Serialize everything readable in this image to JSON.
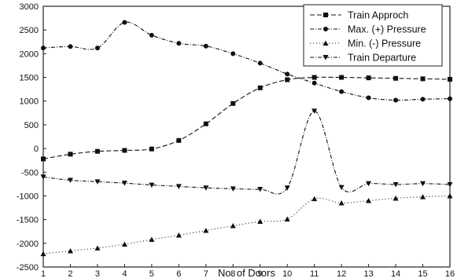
{
  "chart_data": {
    "type": "line",
    "title": "",
    "xlabel": "No. of Doors",
    "ylabel": "",
    "x": [
      1,
      2,
      3,
      4,
      5,
      6,
      7,
      8,
      9,
      10,
      11,
      12,
      13,
      14,
      15,
      16
    ],
    "xlim": [
      1,
      16
    ],
    "ylim": [
      -2500,
      3000
    ],
    "y_ticks": [
      -2500,
      -2000,
      -1500,
      -1000,
      -500,
      0,
      500,
      1000,
      1500,
      2000,
      2500,
      3000
    ],
    "legend_position": "top-right",
    "grid": false,
    "series": [
      {
        "name": "Train Approch",
        "marker": "square",
        "dash": "6,3",
        "values": [
          -220,
          -120,
          -60,
          -40,
          -10,
          170,
          520,
          950,
          1280,
          1450,
          1500,
          1500,
          1490,
          1480,
          1470,
          1460
        ]
      },
      {
        "name": "Max. (+) Pressure",
        "marker": "circle",
        "dash": "5,2,1,2",
        "values": [
          2120,
          2150,
          2120,
          2660,
          2390,
          2220,
          2160,
          2000,
          1800,
          1570,
          1380,
          1200,
          1070,
          1020,
          1040,
          1050
        ]
      },
      {
        "name": "Min. (-) Pressure",
        "marker": "triangle-up",
        "dash": "1,3",
        "values": [
          -2220,
          -2160,
          -2100,
          -2020,
          -1920,
          -1830,
          -1730,
          -1630,
          -1540,
          -1490,
          -1060,
          -1150,
          -1100,
          -1050,
          -1020,
          -1000
        ]
      },
      {
        "name": "Train Departure",
        "marker": "triangle-down",
        "dash": "5,2,1,2",
        "values": [
          -600,
          -670,
          -700,
          -730,
          -770,
          -800,
          -830,
          -850,
          -860,
          -830,
          790,
          -820,
          -740,
          -760,
          -740,
          -760
        ]
      }
    ]
  }
}
